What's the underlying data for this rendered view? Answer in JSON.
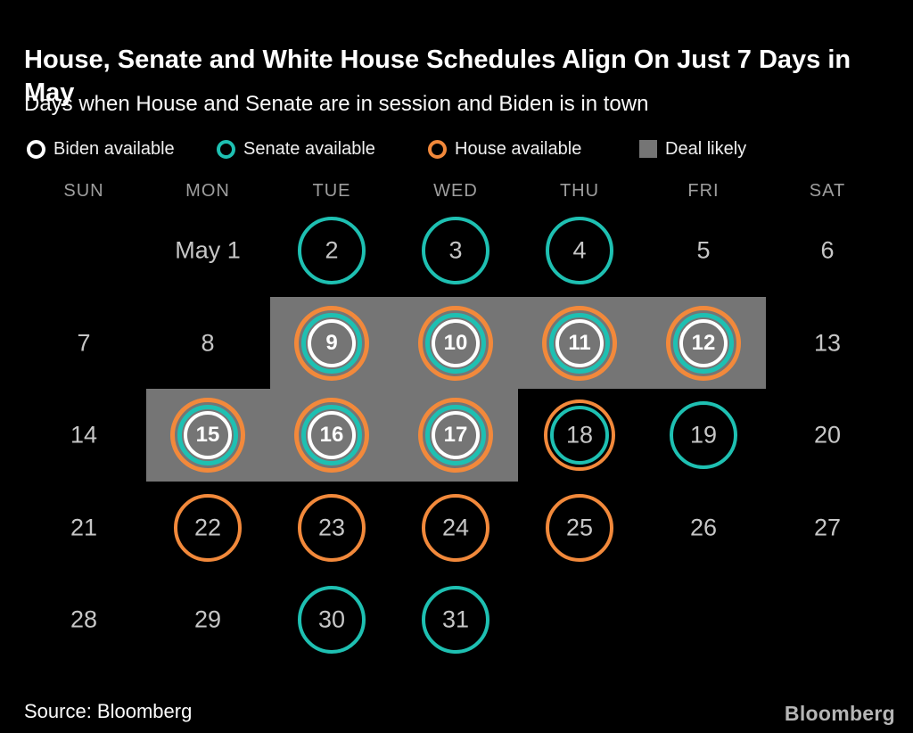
{
  "header": {
    "title": "House, Senate and White House Schedules Align On Just 7 Days in May",
    "subtitle": "Days when House and Senate are in session and Biden is in town"
  },
  "legend": {
    "items": [
      {
        "id": "biden",
        "label": "Biden available"
      },
      {
        "id": "senate",
        "label": "Senate available"
      },
      {
        "id": "house",
        "label": "House available"
      },
      {
        "id": "deal",
        "label": "Deal likely"
      }
    ]
  },
  "colors": {
    "biden": "#ffffff",
    "senate": "#1ec0b2",
    "house": "#f2893b",
    "deal": "#757575",
    "background": "#000000",
    "day_number": "#c6c6c6",
    "day_number_bold": "#ffffff",
    "weekday": "#9e9e9e"
  },
  "footer": {
    "source": "Source: Bloomberg",
    "logo": "Bloomberg"
  },
  "chart_data": {
    "type": "calendar",
    "month": "May",
    "weekdays": [
      "SUN",
      "MON",
      "TUE",
      "WED",
      "THU",
      "FRI",
      "SAT"
    ],
    "ring_order_outer_to_inner": [
      "house",
      "senate",
      "biden"
    ],
    "days": [
      {
        "label": "May 1",
        "day": 1,
        "week": 0,
        "col": 1,
        "rings": [],
        "deal": false
      },
      {
        "label": "2",
        "day": 2,
        "week": 0,
        "col": 2,
        "rings": [
          "senate"
        ],
        "deal": false
      },
      {
        "label": "3",
        "day": 3,
        "week": 0,
        "col": 3,
        "rings": [
          "senate"
        ],
        "deal": false
      },
      {
        "label": "4",
        "day": 4,
        "week": 0,
        "col": 4,
        "rings": [
          "senate"
        ],
        "deal": false
      },
      {
        "label": "5",
        "day": 5,
        "week": 0,
        "col": 5,
        "rings": [],
        "deal": false
      },
      {
        "label": "6",
        "day": 6,
        "week": 0,
        "col": 6,
        "rings": [],
        "deal": false
      },
      {
        "label": "7",
        "day": 7,
        "week": 1,
        "col": 0,
        "rings": [],
        "deal": false
      },
      {
        "label": "8",
        "day": 8,
        "week": 1,
        "col": 1,
        "rings": [],
        "deal": false
      },
      {
        "label": "9",
        "day": 9,
        "week": 1,
        "col": 2,
        "rings": [
          "house",
          "senate",
          "biden"
        ],
        "deal": true
      },
      {
        "label": "10",
        "day": 10,
        "week": 1,
        "col": 3,
        "rings": [
          "house",
          "senate",
          "biden"
        ],
        "deal": true
      },
      {
        "label": "11",
        "day": 11,
        "week": 1,
        "col": 4,
        "rings": [
          "house",
          "senate",
          "biden"
        ],
        "deal": true
      },
      {
        "label": "12",
        "day": 12,
        "week": 1,
        "col": 5,
        "rings": [
          "house",
          "senate",
          "biden"
        ],
        "deal": true
      },
      {
        "label": "13",
        "day": 13,
        "week": 1,
        "col": 6,
        "rings": [],
        "deal": false
      },
      {
        "label": "14",
        "day": 14,
        "week": 2,
        "col": 0,
        "rings": [],
        "deal": false
      },
      {
        "label": "15",
        "day": 15,
        "week": 2,
        "col": 1,
        "rings": [
          "house",
          "senate",
          "biden"
        ],
        "deal": true
      },
      {
        "label": "16",
        "day": 16,
        "week": 2,
        "col": 2,
        "rings": [
          "house",
          "senate",
          "biden"
        ],
        "deal": true
      },
      {
        "label": "17",
        "day": 17,
        "week": 2,
        "col": 3,
        "rings": [
          "house",
          "senate",
          "biden"
        ],
        "deal": true
      },
      {
        "label": "18",
        "day": 18,
        "week": 2,
        "col": 4,
        "rings": [
          "house",
          "senate"
        ],
        "deal": false
      },
      {
        "label": "19",
        "day": 19,
        "week": 2,
        "col": 5,
        "rings": [
          "senate"
        ],
        "deal": false
      },
      {
        "label": "20",
        "day": 20,
        "week": 2,
        "col": 6,
        "rings": [],
        "deal": false
      },
      {
        "label": "21",
        "day": 21,
        "week": 3,
        "col": 0,
        "rings": [],
        "deal": false
      },
      {
        "label": "22",
        "day": 22,
        "week": 3,
        "col": 1,
        "rings": [
          "house"
        ],
        "deal": false
      },
      {
        "label": "23",
        "day": 23,
        "week": 3,
        "col": 2,
        "rings": [
          "house"
        ],
        "deal": false
      },
      {
        "label": "24",
        "day": 24,
        "week": 3,
        "col": 3,
        "rings": [
          "house"
        ],
        "deal": false
      },
      {
        "label": "25",
        "day": 25,
        "week": 3,
        "col": 4,
        "rings": [
          "house"
        ],
        "deal": false
      },
      {
        "label": "26",
        "day": 26,
        "week": 3,
        "col": 5,
        "rings": [],
        "deal": false
      },
      {
        "label": "27",
        "day": 27,
        "week": 3,
        "col": 6,
        "rings": [],
        "deal": false
      },
      {
        "label": "28",
        "day": 28,
        "week": 4,
        "col": 0,
        "rings": [],
        "deal": false
      },
      {
        "label": "29",
        "day": 29,
        "week": 4,
        "col": 1,
        "rings": [],
        "deal": false
      },
      {
        "label": "30",
        "day": 30,
        "week": 4,
        "col": 2,
        "rings": [
          "senate"
        ],
        "deal": false
      },
      {
        "label": "31",
        "day": 31,
        "week": 4,
        "col": 3,
        "rings": [
          "senate"
        ],
        "deal": false
      }
    ]
  }
}
